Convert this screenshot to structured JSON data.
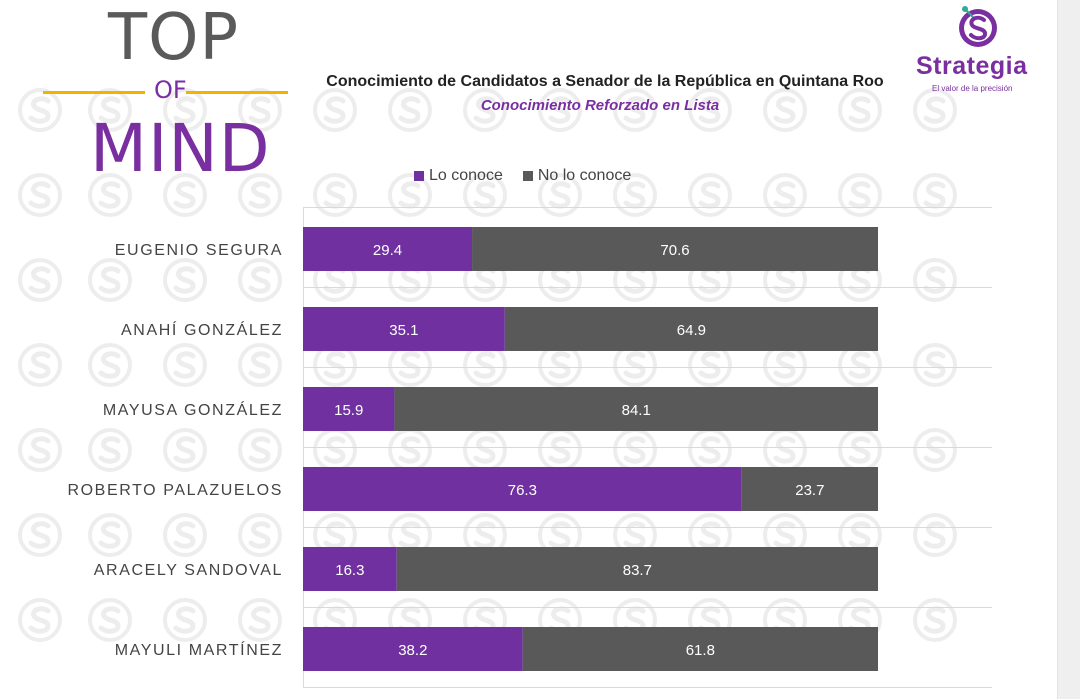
{
  "logo_top_of_mind": {
    "top": "TOP",
    "of": "OF",
    "mind": "MIND"
  },
  "brand": {
    "name": "Strategia",
    "tagline": "El valor de la precisión"
  },
  "colors": {
    "lo_conoce": "#7030a0",
    "no_lo_conoce": "#595959",
    "accent": "#7a2fa0",
    "gold": "#f0b400"
  },
  "chart_data": {
    "type": "bar",
    "orientation": "horizontal",
    "stacked": true,
    "title": "Conocimiento de Candidatos a Senador de la República en Quintana Roo",
    "subtitle": "Conocimiento Reforzado en Lista",
    "legend_position": "top",
    "categories": [
      "EUGENIO SEGURA",
      "ANAHÍ GONZÁLEZ",
      "MAYUSA GONZÁLEZ",
      "ROBERTO PALAZUELOS",
      "ARACELY SANDOVAL",
      "MAYULI MARTÍNEZ"
    ],
    "series": [
      {
        "name": "Lo conoce",
        "color": "#7030a0",
        "values": [
          29.4,
          35.1,
          15.9,
          76.3,
          16.3,
          38.2
        ]
      },
      {
        "name": "No lo conoce",
        "color": "#595959",
        "values": [
          70.6,
          64.9,
          84.1,
          23.7,
          83.7,
          61.8
        ]
      }
    ],
    "xlim": [
      0,
      100
    ]
  }
}
